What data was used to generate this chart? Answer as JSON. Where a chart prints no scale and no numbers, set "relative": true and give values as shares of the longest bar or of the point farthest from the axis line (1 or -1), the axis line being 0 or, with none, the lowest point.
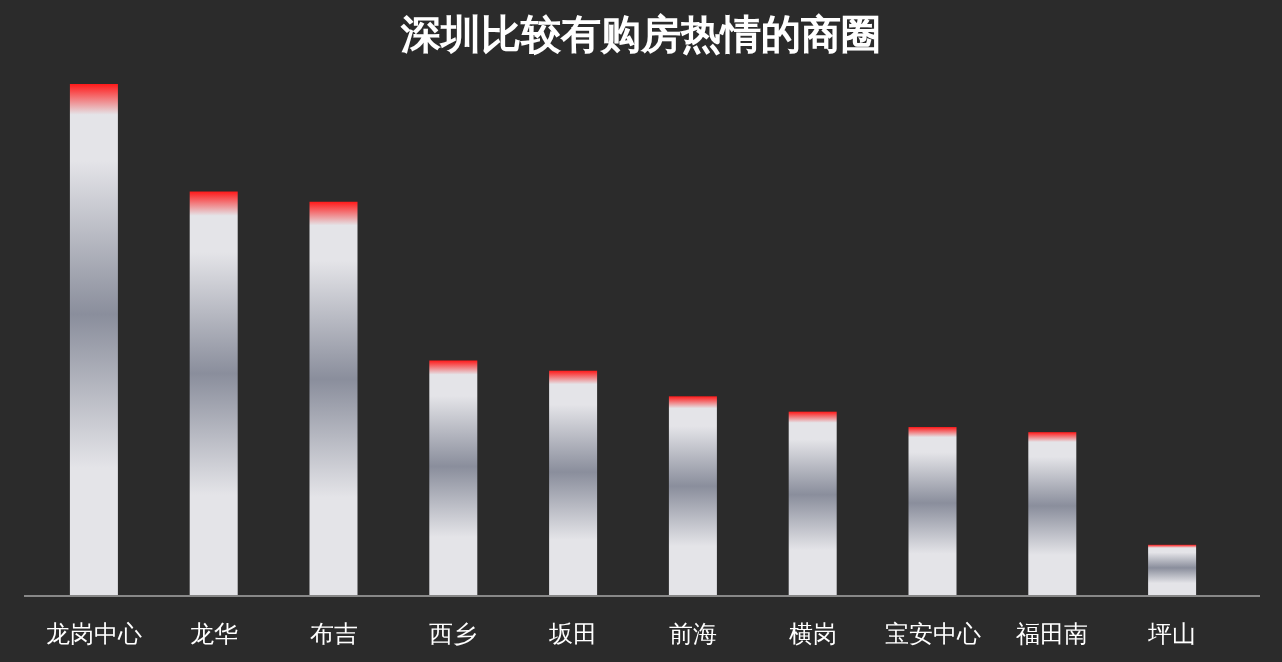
{
  "chart_data": {
    "type": "bar",
    "title": "深圳比较有购房热情的商圈",
    "categories": [
      "龙岗中心",
      "龙华",
      "布吉",
      "西乡",
      "坂田",
      "前海",
      "横岗",
      "宝安中心",
      "福田南",
      "坪山"
    ],
    "values": [
      1,
      0.79,
      0.77,
      0.46,
      0.44,
      0.39,
      0.36,
      0.33,
      0.32,
      0.1
    ],
    "color": "#e4e4e8",
    "relative": true
  }
}
